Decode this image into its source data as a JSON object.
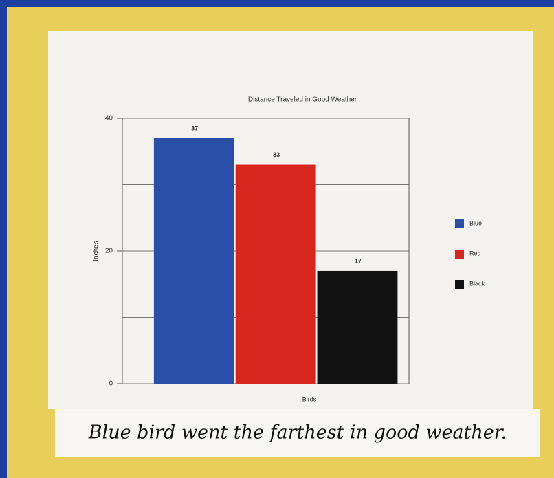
{
  "chart_data": {
    "type": "bar",
    "title": "Distance Traveled in Good Weather",
    "y_label": "Inches",
    "x_label": "Birds",
    "categories": [
      null
    ],
    "series": [
      {
        "name": "Blue",
        "color": "#2a4fa8",
        "values": [
          37
        ]
      },
      {
        "name": "Red",
        "color": "#d8261c",
        "values": [
          33
        ]
      },
      {
        "name": "Black",
        "color": "#111111",
        "values": [
          17
        ]
      }
    ],
    "ylim": [
      0,
      40
    ],
    "yticks": [
      0,
      20,
      40
    ],
    "minor_yticks": [
      10,
      30
    ],
    "grid": true,
    "legend": "right",
    "caption": "Blue bird went the farthest in good weather."
  }
}
